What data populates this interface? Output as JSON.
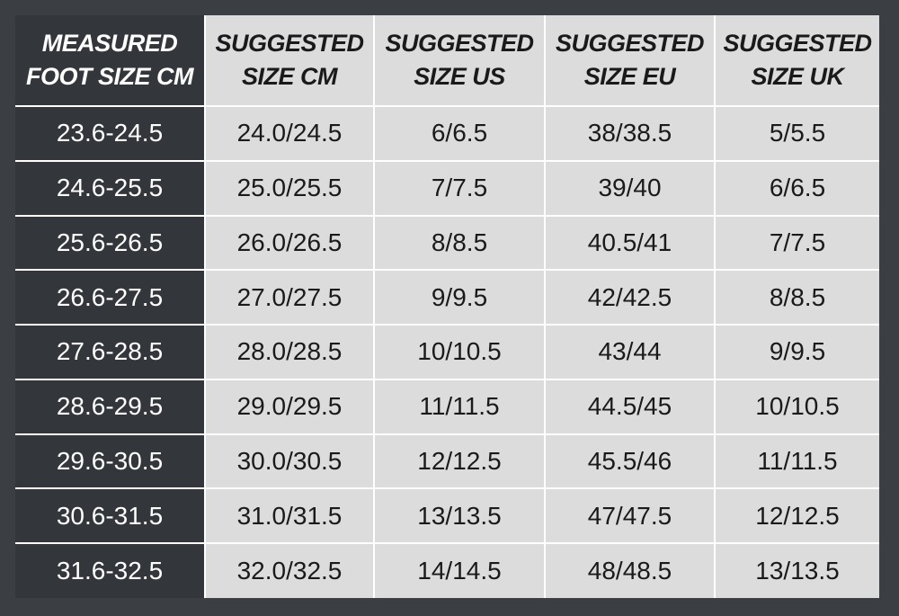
{
  "table": {
    "header": [
      [
        "MEASURED",
        "FOOT SIZE CM"
      ],
      [
        "SUGGESTED",
        "SIZE CM"
      ],
      [
        "SUGGESTED",
        "SIZE US"
      ],
      [
        "SUGGESTED",
        "SIZE EU"
      ],
      [
        "SUGGESTED",
        "SIZE UK"
      ]
    ],
    "rows": [
      [
        "23.6-24.5",
        "24.0/24.5",
        "6/6.5",
        "38/38.5",
        "5/5.5"
      ],
      [
        "24.6-25.5",
        "25.0/25.5",
        "7/7.5",
        "39/40",
        "6/6.5"
      ],
      [
        "25.6-26.5",
        "26.0/26.5",
        "8/8.5",
        "40.5/41",
        "7/7.5"
      ],
      [
        "26.6-27.5",
        "27.0/27.5",
        "9/9.5",
        "42/42.5",
        "8/8.5"
      ],
      [
        "27.6-28.5",
        "28.0/28.5",
        "10/10.5",
        "43/44",
        "9/9.5"
      ],
      [
        "28.6-29.5",
        "29.0/29.5",
        "11/11.5",
        "44.5/45",
        "10/10.5"
      ],
      [
        "29.6-30.5",
        "30.0/30.5",
        "12/12.5",
        "45.5/46",
        "11/11.5"
      ],
      [
        "30.6-31.5",
        "31.0/31.5",
        "13/13.5",
        "47/47.5",
        "12/12.5"
      ],
      [
        "31.6-32.5",
        "32.0/32.5",
        "14/14.5",
        "48/48.5",
        "13/13.5"
      ]
    ]
  }
}
